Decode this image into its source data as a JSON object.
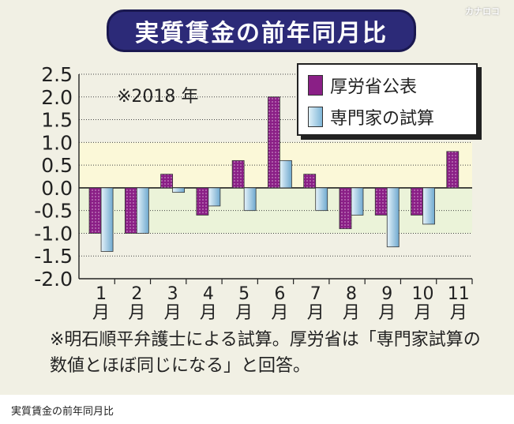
{
  "title": "実質賃金の前年同月比",
  "watermark": "カナロコ",
  "caption": "実質賃金の前年同月比",
  "note": "※明石順平弁護士による試算。厚労省は「専門家試算の数値とほぼ同じになる」と回答。",
  "colors": {
    "series_a": "#8a1f86",
    "series_b": "#8fc3e0",
    "title_bg": "#2c2a78",
    "panel_bg": "#f1f0e4"
  },
  "chart_data": {
    "type": "bar",
    "title": "実質賃金の前年同月比",
    "annotation": "※2018 年",
    "categories": [
      "1",
      "2",
      "3",
      "4",
      "5",
      "6",
      "7",
      "8",
      "9",
      "10",
      "11"
    ],
    "category_unit": "月",
    "ylim": [
      -2.0,
      2.5
    ],
    "yticks": [
      "2.5",
      "2.0",
      "1.5",
      "1.0",
      "0.5",
      "0.0",
      "-0.5",
      "-1.0",
      "-1.5",
      "-2.0"
    ],
    "legend_position": "top-right",
    "series": [
      {
        "name": "厚労省公表",
        "values": [
          -1.0,
          -1.0,
          0.3,
          -0.6,
          0.6,
          2.0,
          0.3,
          -0.9,
          -0.6,
          -0.6,
          0.8
        ]
      },
      {
        "name": "専門家の試算",
        "values": [
          -1.4,
          -1.0,
          -0.1,
          -0.4,
          -0.5,
          0.6,
          -0.5,
          -0.6,
          -1.3,
          -0.8,
          null
        ]
      }
    ]
  }
}
